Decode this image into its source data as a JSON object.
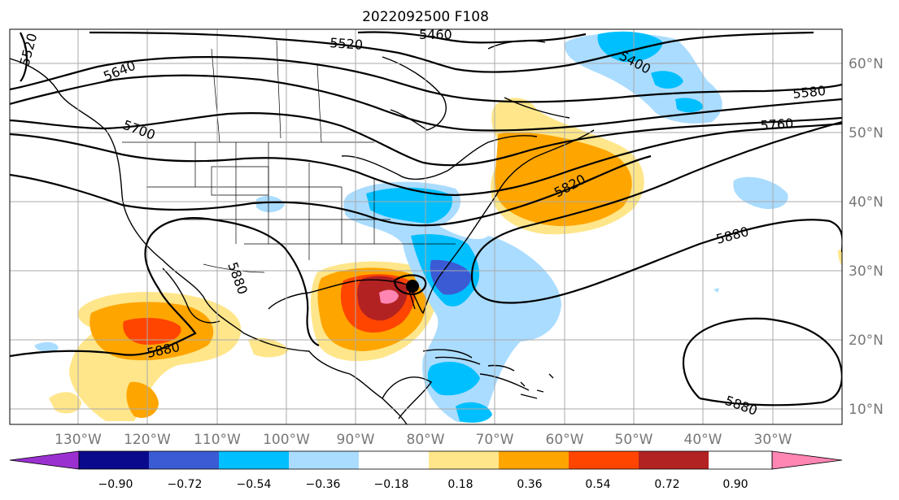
{
  "title": "2022092500 F108",
  "longitude_labels": [
    "130°W",
    "120°W",
    "110°W",
    "100°W",
    "90°W",
    "80°W",
    "70°W",
    "60°W",
    "50°W",
    "40°W",
    "30°W"
  ],
  "latitude_labels": [
    "60°N",
    "50°N",
    "40°N",
    "30°N",
    "20°N",
    "10°N"
  ],
  "contour_labels": [
    "5520",
    "5460",
    "5400",
    "5580",
    "5760",
    "5820",
    "5880",
    "5520",
    "5640",
    "5700",
    "5880",
    "5880",
    "5880"
  ],
  "colorbar": {
    "tick_labels": [
      "−0.90",
      "−0.72",
      "−0.54",
      "−0.36",
      "−0.18",
      "0.18",
      "0.36",
      "0.54",
      "0.72",
      "0.90"
    ],
    "colors": [
      "#9b30d0",
      "#0a0a8c",
      "#3b5bd4",
      "#00bfff",
      "#aadcff",
      "#ffffff",
      "#ffe68a",
      "#ffa500",
      "#ff4500",
      "#b22222",
      "#ff85b3"
    ]
  },
  "marker": {
    "type": "storm-center",
    "color": "#000000"
  }
}
